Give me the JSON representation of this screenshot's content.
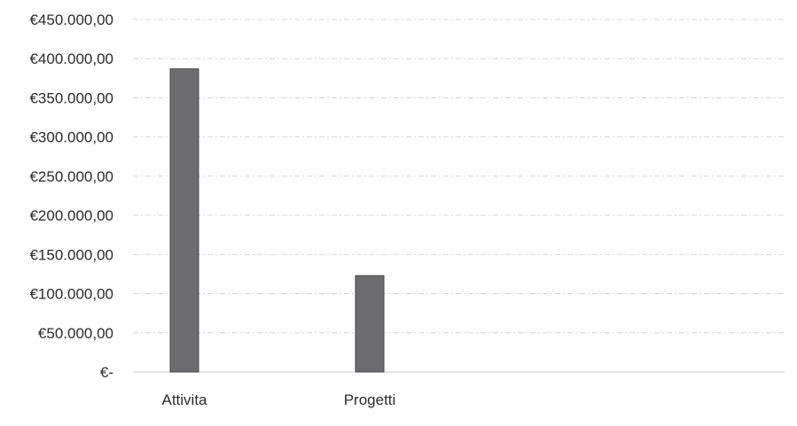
{
  "chart_data": {
    "type": "bar",
    "categories": [
      "Attivita",
      "Progetti"
    ],
    "values": [
      387000,
      123000
    ],
    "ylim": [
      0,
      450000
    ],
    "ytick_values": [
      0,
      50000,
      100000,
      150000,
      200000,
      250000,
      300000,
      350000,
      400000,
      450000
    ],
    "ytick_labels": [
      "€-",
      "€50.000,00",
      "€100.000,00",
      "€150.000,00",
      "€200.000,00",
      "€250.000,00",
      "€300.000,00",
      "€350.000,00",
      "€400.000,00",
      "€450.000,00"
    ],
    "grid": true,
    "bar_color": "#6b6b70",
    "bar_edge_color": "#4a4a4e"
  }
}
